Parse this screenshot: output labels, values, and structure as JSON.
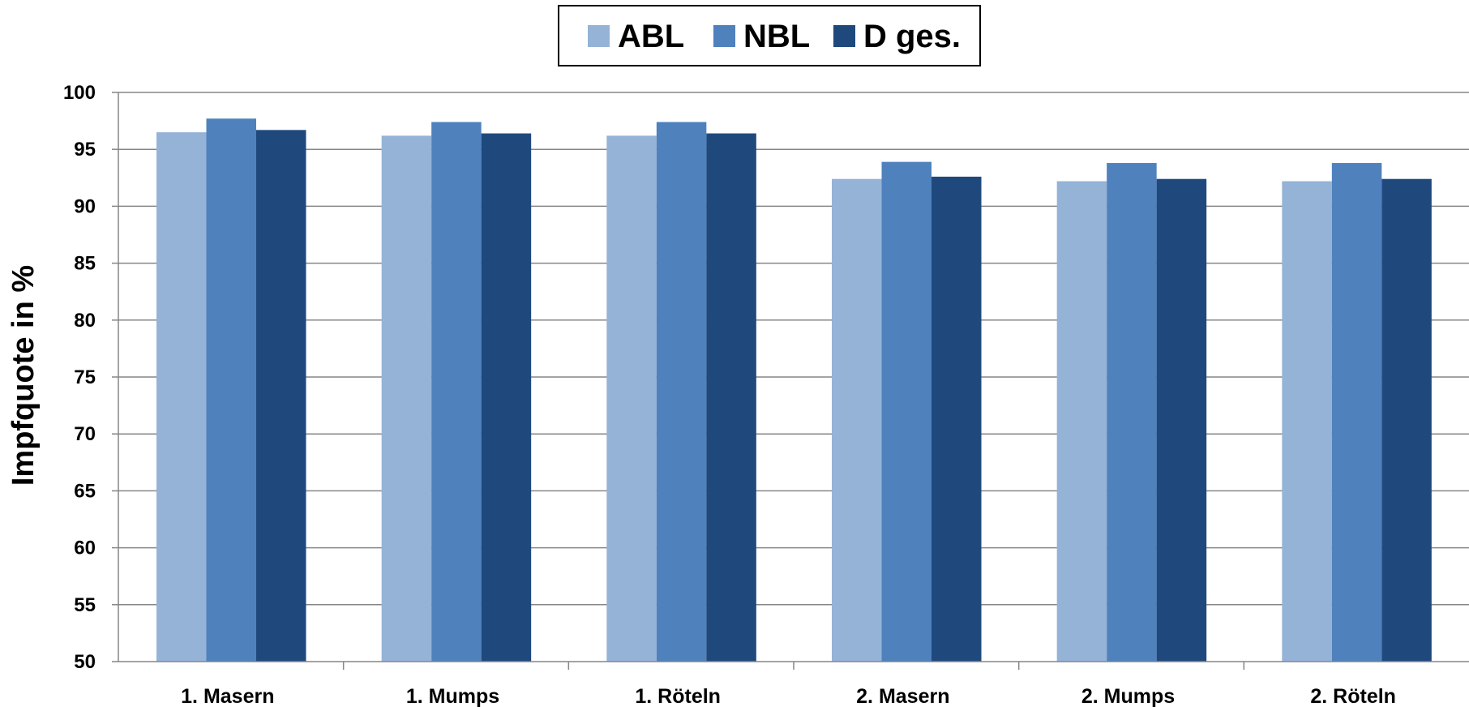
{
  "chart_data": {
    "type": "bar",
    "title": "",
    "xlabel": "",
    "ylabel": "Impfquote in %",
    "ylim": [
      50,
      100
    ],
    "ytick_step": 5,
    "grid": true,
    "legend_position": "top-center",
    "categories": [
      "1. Masern",
      "1. Mumps",
      "1. Röteln",
      "2. Masern",
      "2. Mumps",
      "2. Röteln"
    ],
    "series": [
      {
        "name": "ABL",
        "color": "#95b3d7",
        "values": [
          96.5,
          96.2,
          96.2,
          92.4,
          92.2,
          92.2
        ]
      },
      {
        "name": "NBL",
        "color": "#4f81bd",
        "values": [
          97.7,
          97.4,
          97.4,
          93.9,
          93.8,
          93.8
        ]
      },
      {
        "name": "D ges.",
        "color": "#1f497d",
        "values": [
          96.7,
          96.4,
          96.4,
          92.6,
          92.4,
          92.4
        ]
      }
    ]
  }
}
